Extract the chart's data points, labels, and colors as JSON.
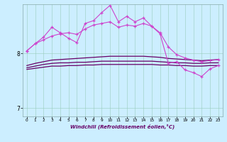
{
  "bg_color": "#cceeff",
  "line_color_pink": "#cc44cc",
  "line_color_dark": "#660066",
  "xlim": [
    -0.5,
    23.5
  ],
  "ylim": [
    6.85,
    8.9
  ],
  "yticks": [
    7,
    8
  ],
  "xticks": [
    0,
    1,
    2,
    3,
    4,
    5,
    6,
    7,
    8,
    9,
    10,
    11,
    12,
    13,
    14,
    15,
    16,
    17,
    18,
    19,
    20,
    21,
    22,
    23
  ],
  "xlabel": "Windchill (Refroidissement éolien,°C)",
  "series1_x": [
    0,
    1,
    2,
    3,
    4,
    5,
    6,
    7,
    8,
    9,
    10,
    11,
    12,
    13,
    14,
    15,
    16,
    17,
    18,
    19,
    20,
    21,
    22,
    23
  ],
  "series1_y": [
    8.05,
    8.18,
    8.25,
    8.32,
    8.36,
    8.38,
    8.35,
    8.45,
    8.52,
    8.55,
    8.58,
    8.48,
    8.52,
    8.5,
    8.55,
    8.5,
    8.38,
    8.12,
    7.98,
    7.92,
    7.88,
    7.85,
    7.87,
    7.89
  ],
  "series2_x": [
    0,
    1,
    2,
    3,
    4,
    5,
    6,
    7,
    8,
    9,
    10,
    11,
    12,
    13,
    14,
    15,
    16,
    17,
    18,
    19,
    20,
    21,
    22,
    23
  ],
  "series2_y": [
    8.05,
    8.18,
    8.3,
    8.48,
    8.38,
    8.28,
    8.2,
    8.55,
    8.6,
    8.75,
    8.88,
    8.58,
    8.68,
    8.58,
    8.65,
    8.5,
    8.36,
    7.82,
    7.85,
    7.7,
    7.65,
    7.58,
    7.72,
    7.78
  ],
  "series3_x": [
    0,
    1,
    2,
    3,
    4,
    5,
    6,
    7,
    8,
    9,
    10,
    11,
    12,
    13,
    14,
    15,
    16,
    17,
    18,
    19,
    20,
    21,
    22,
    23
  ],
  "series3_y": [
    7.78,
    7.82,
    7.85,
    7.88,
    7.89,
    7.9,
    7.91,
    7.92,
    7.93,
    7.94,
    7.95,
    7.95,
    7.95,
    7.95,
    7.95,
    7.94,
    7.93,
    7.91,
    7.9,
    7.89,
    7.88,
    7.87,
    7.88,
    7.89
  ],
  "series4_x": [
    0,
    1,
    2,
    3,
    4,
    5,
    6,
    7,
    8,
    9,
    10,
    11,
    12,
    13,
    14,
    15,
    16,
    17,
    18,
    19,
    20,
    21,
    22,
    23
  ],
  "series4_y": [
    7.74,
    7.77,
    7.8,
    7.82,
    7.83,
    7.83,
    7.84,
    7.84,
    7.85,
    7.86,
    7.86,
    7.86,
    7.86,
    7.86,
    7.86,
    7.86,
    7.85,
    7.84,
    7.83,
    7.83,
    7.82,
    7.82,
    7.83,
    7.83
  ],
  "series5_x": [
    0,
    1,
    2,
    3,
    4,
    5,
    6,
    7,
    8,
    9,
    10,
    11,
    12,
    13,
    14,
    15,
    16,
    17,
    18,
    19,
    20,
    21,
    22,
    23
  ],
  "series5_y": [
    7.71,
    7.73,
    7.75,
    7.77,
    7.77,
    7.78,
    7.78,
    7.79,
    7.79,
    7.8,
    7.8,
    7.8,
    7.8,
    7.8,
    7.8,
    7.8,
    7.79,
    7.79,
    7.78,
    7.78,
    7.77,
    7.77,
    7.78,
    7.78
  ]
}
